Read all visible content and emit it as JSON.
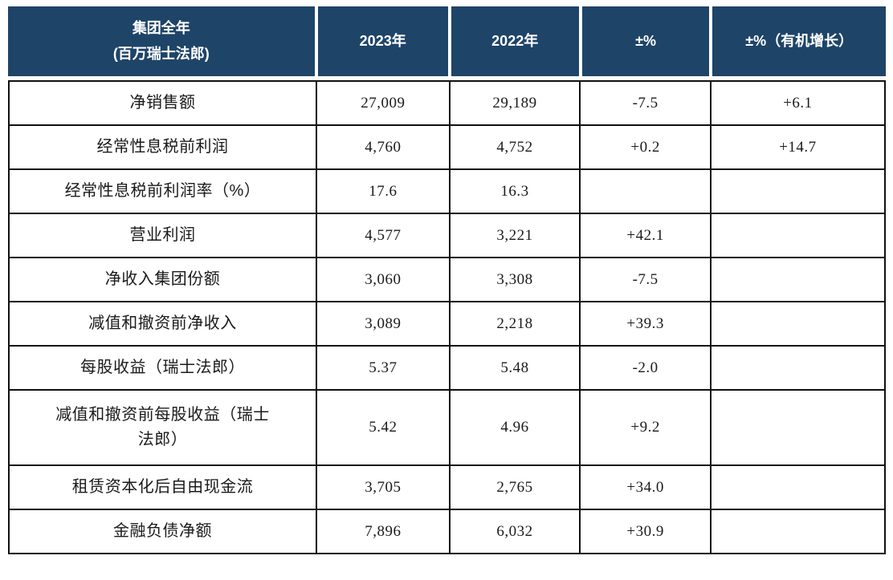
{
  "colors": {
    "header_bg": "#1e4468",
    "border": "#111111",
    "header_text": "#ffffff"
  },
  "table": {
    "header": {
      "title_line1": "集团全年",
      "title_line2": "(百万瑞士法郎)",
      "col_2023": "2023年",
      "col_2022": "2022年",
      "col_pct": "±%",
      "col_pct_organic": "±%（有机增长）"
    },
    "rows": [
      {
        "label": "净销售额",
        "y2023": "27,009",
        "y2022": "29,189",
        "pct": "-7.5",
        "organic": "+6.1"
      },
      {
        "label": "经常性息税前利润",
        "y2023": "4,760",
        "y2022": "4,752",
        "pct": "+0.2",
        "organic": "+14.7"
      },
      {
        "label": "经常性息税前利润率（%）",
        "y2023": "17.6",
        "y2022": "16.3",
        "pct": "",
        "organic": ""
      },
      {
        "label": "营业利润",
        "y2023": "4,577",
        "y2022": "3,221",
        "pct": "+42.1",
        "organic": ""
      },
      {
        "label": "净收入集团份额",
        "y2023": "3,060",
        "y2022": "3,308",
        "pct": "-7.5",
        "organic": ""
      },
      {
        "label": "减值和撤资前净收入",
        "y2023": "3,089",
        "y2022": "2,218",
        "pct": "+39.3",
        "organic": ""
      },
      {
        "label": "每股收益（瑞士法郎）",
        "y2023": "5.37",
        "y2022": "5.48",
        "pct": "-2.0",
        "organic": ""
      },
      {
        "label": "减值和撤资前每股收益（瑞士法郎）",
        "y2023": "5.42",
        "y2022": "4.96",
        "pct": "+9.2",
        "organic": ""
      },
      {
        "label": "租赁资本化后自由现金流",
        "y2023": "3,705",
        "y2022": "2,765",
        "pct": "+34.0",
        "organic": ""
      },
      {
        "label": "金融负债净额",
        "y2023": "7,896",
        "y2022": "6,032",
        "pct": "+30.9",
        "organic": ""
      }
    ]
  }
}
